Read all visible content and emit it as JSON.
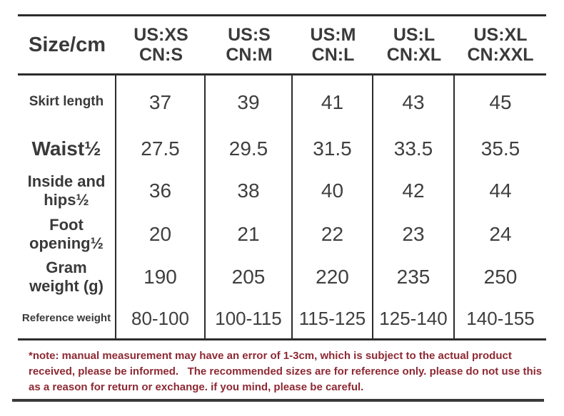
{
  "colors": {
    "text": "#3a3a3a",
    "line": "#2c2c2c",
    "note_red": "#8d2933",
    "background": "#ffffff"
  },
  "table": {
    "corner_label": "Size/cm",
    "size_columns": [
      {
        "us": "US:XS",
        "cn": "CN:S"
      },
      {
        "us": "US:S",
        "cn": "CN:M"
      },
      {
        "us": "US:M",
        "cn": "CN:L"
      },
      {
        "us": "US:L",
        "cn": "CN:XL"
      },
      {
        "us": "US:XL",
        "cn": "CN:XXL"
      }
    ],
    "rows": [
      {
        "label": "Skirt length",
        "values": [
          "37",
          "39",
          "41",
          "43",
          "45"
        ]
      },
      {
        "label": "Waist½",
        "values": [
          "27.5",
          "29.5",
          "31.5",
          "33.5",
          "35.5"
        ]
      },
      {
        "label": "Inside and hips½",
        "values": [
          "36",
          "38",
          "40",
          "42",
          "44"
        ]
      },
      {
        "label": "Foot opening½",
        "values": [
          "20",
          "21",
          "22",
          "23",
          "24"
        ]
      },
      {
        "label": "Gram weight (g)",
        "values": [
          "190",
          "205",
          "220",
          "235",
          "250"
        ]
      },
      {
        "label": "Reference weight",
        "values": [
          "80-100",
          "100-115",
          "115-125",
          "125-140",
          "140-155"
        ]
      }
    ]
  },
  "note": {
    "text": "*note: manual measurement may have an error of 1-3cm, which is subject to the actual product received, please be informed.   The recommended sizes are for reference only. please do not use this as a reason for return or exchange. if you mind, please be careful."
  }
}
